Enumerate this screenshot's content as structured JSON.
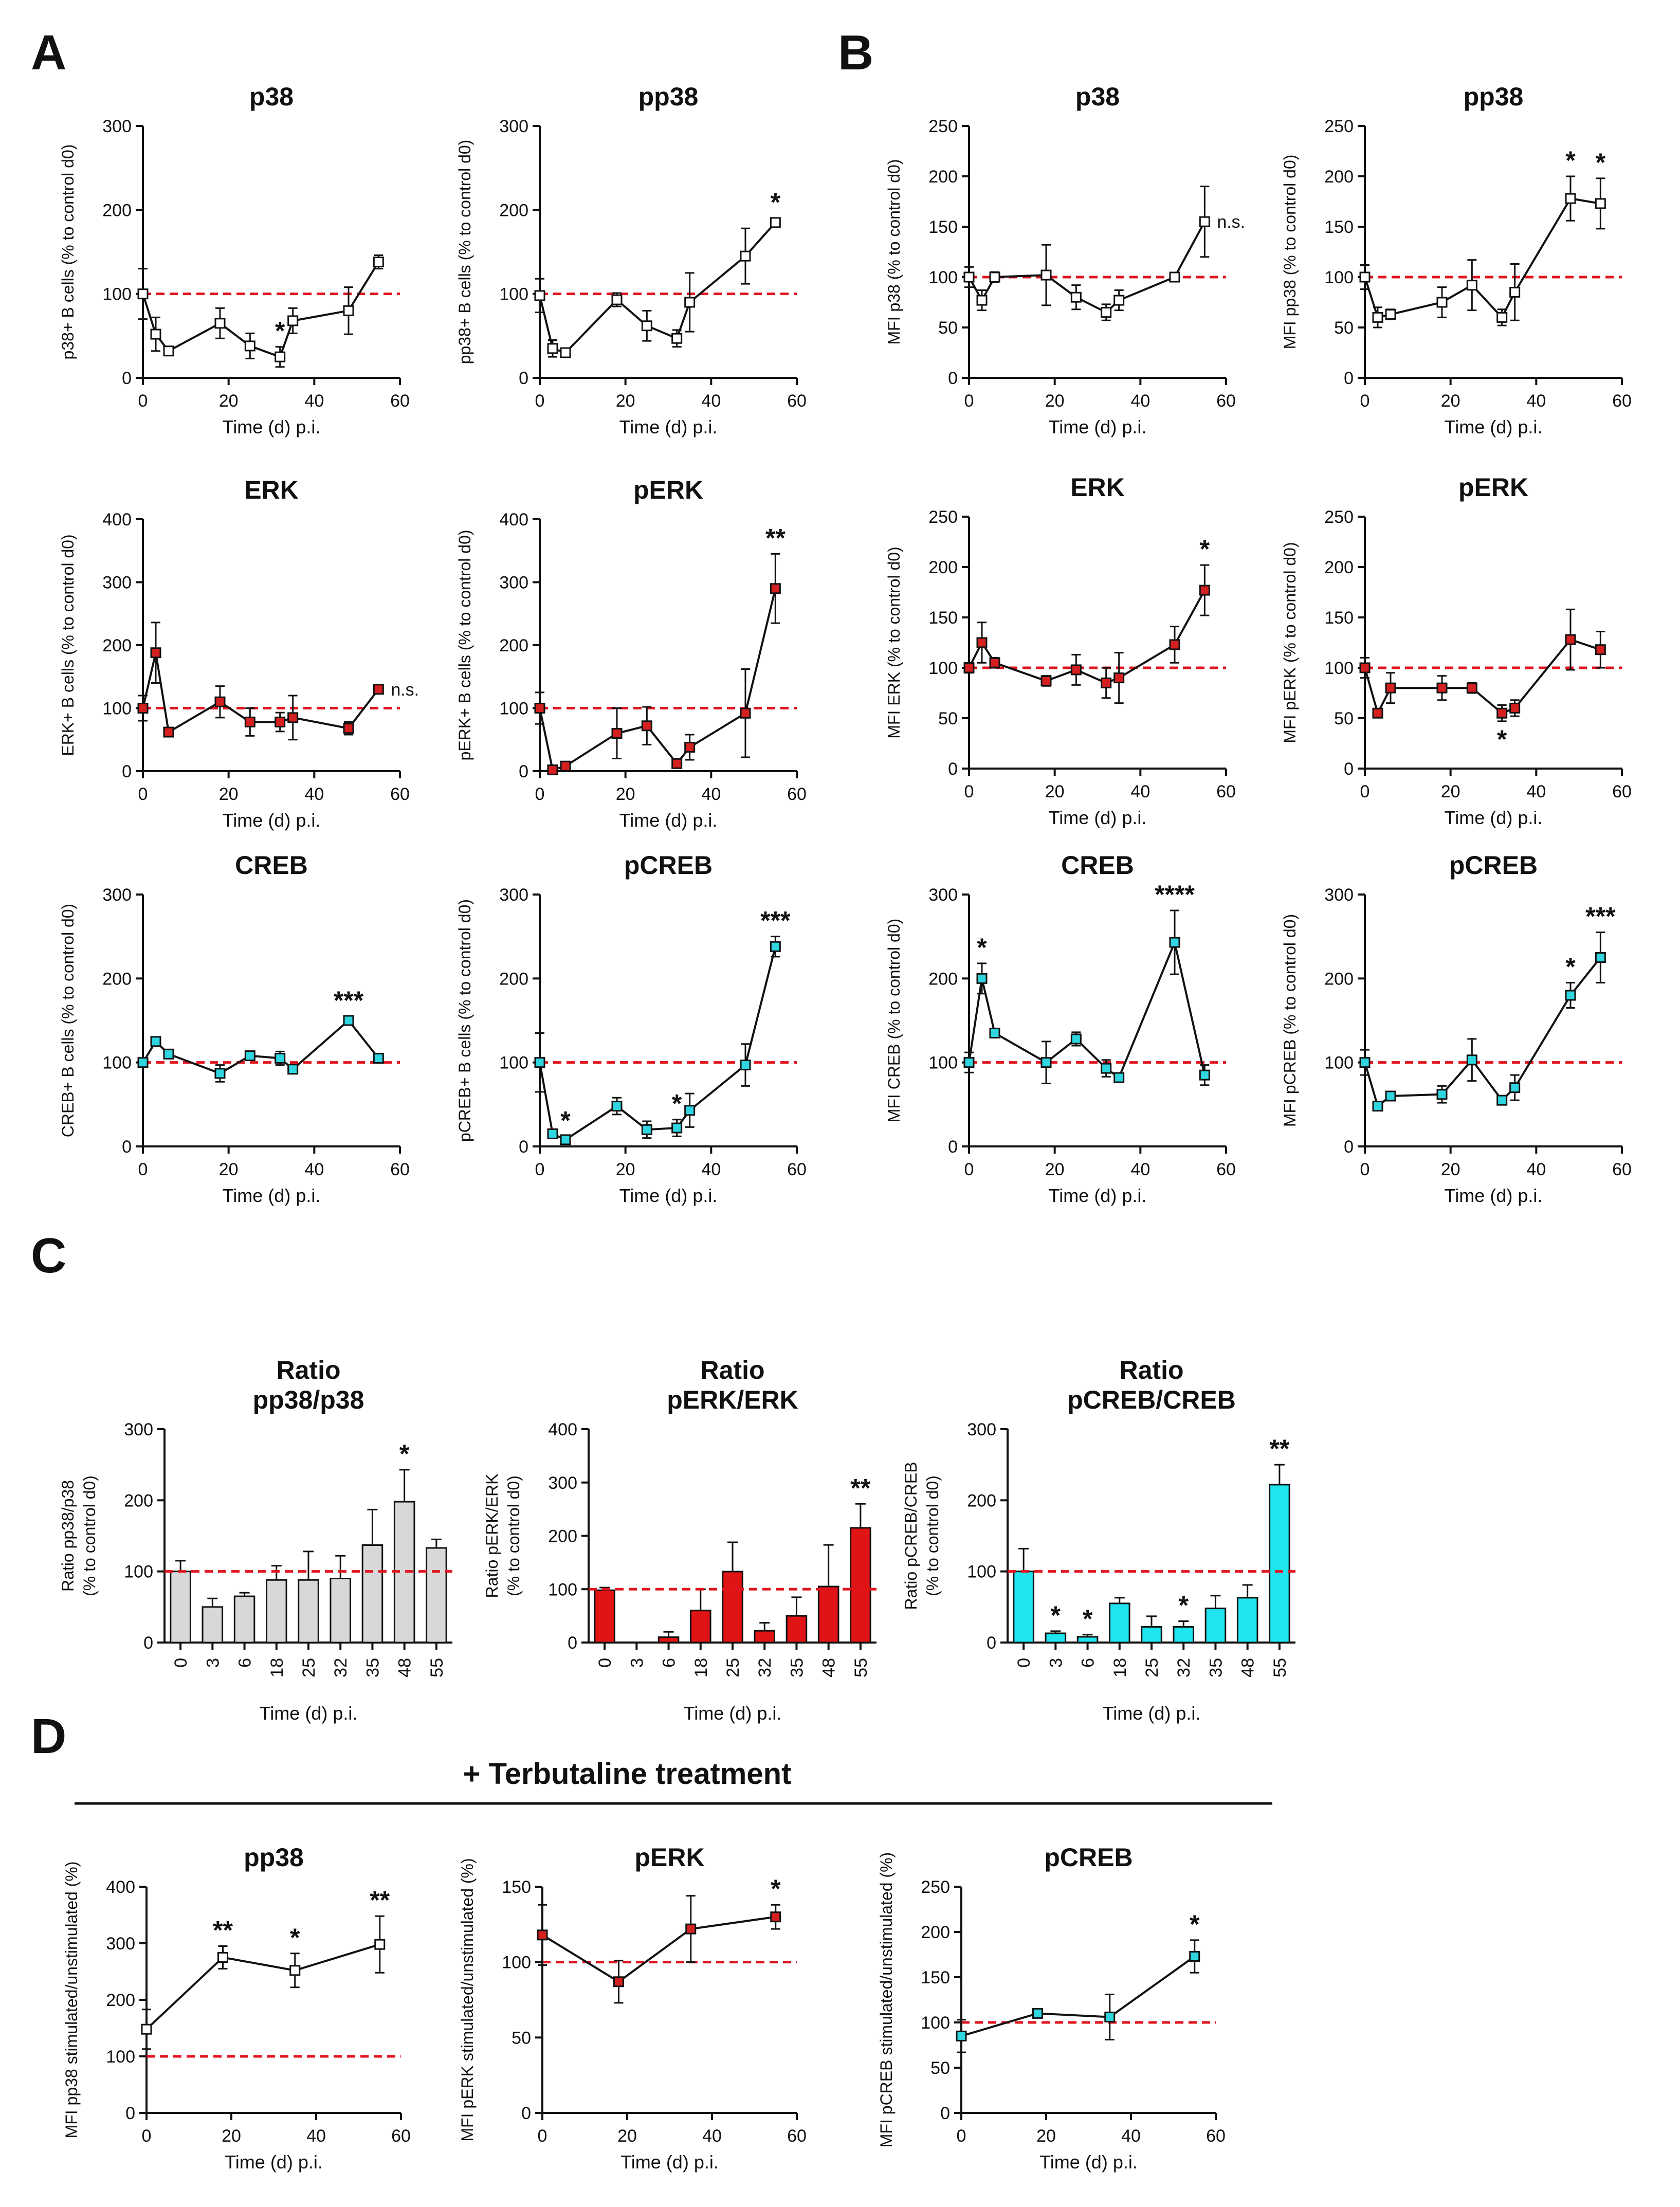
{
  "figure": {
    "panel_labels": [
      "A",
      "B",
      "C",
      "D"
    ],
    "treatment_title": "+ Terbutaline treatment"
  },
  "chart_data": [
    {
      "id": "A1",
      "type": "line",
      "title": [
        "p38"
      ],
      "ylabel": [
        "p38+ B cells (% to control d0)"
      ],
      "xlabel": "Time (d) p.i.",
      "xlim": [
        0,
        60
      ],
      "xticks": [
        0,
        20,
        40,
        60
      ],
      "ylim": [
        0,
        300
      ],
      "yticks": [
        0,
        100,
        200,
        300
      ],
      "reference": 100,
      "marker_color": "#ffffff",
      "x": [
        0,
        3,
        6,
        18,
        25,
        32,
        35,
        48,
        55
      ],
      "y": [
        100,
        52,
        32,
        65,
        38,
        25,
        68,
        80,
        138
      ],
      "err": [
        30,
        20,
        4,
        18,
        15,
        12,
        15,
        28,
        8
      ],
      "annotations": [
        {
          "x": 32,
          "text": "*"
        }
      ]
    },
    {
      "id": "A2",
      "type": "line",
      "title": [
        "pp38"
      ],
      "ylabel": [
        "pp38+ B cells (% to control d0)"
      ],
      "xlabel": "Time (d) p.i.",
      "xlim": [
        0,
        60
      ],
      "xticks": [
        0,
        20,
        40,
        60
      ],
      "ylim": [
        0,
        300
      ],
      "yticks": [
        0,
        100,
        200,
        300
      ],
      "reference": 100,
      "marker_color": "#ffffff",
      "x": [
        0,
        3,
        6,
        18,
        25,
        32,
        35,
        48,
        55
      ],
      "y": [
        98,
        35,
        30,
        93,
        62,
        47,
        90,
        145,
        185
      ],
      "err": [
        20,
        10,
        5,
        8,
        18,
        10,
        35,
        33,
        5
      ],
      "annotations": [
        {
          "x": 55,
          "text": "*"
        }
      ]
    },
    {
      "id": "A3",
      "type": "line",
      "title": [
        "ERK"
      ],
      "ylabel": [
        "ERK+ B cells (% to control d0)"
      ],
      "xlabel": "Time (d) p.i.",
      "xlim": [
        0,
        60
      ],
      "xticks": [
        0,
        20,
        40,
        60
      ],
      "ylim": [
        0,
        400
      ],
      "yticks": [
        0,
        100,
        200,
        300,
        400
      ],
      "reference": 100,
      "marker_color": "#d42020",
      "x": [
        0,
        3,
        6,
        18,
        25,
        32,
        35,
        48,
        55
      ],
      "y": [
        100,
        188,
        62,
        110,
        78,
        78,
        85,
        68,
        130
      ],
      "err": [
        20,
        48,
        5,
        25,
        22,
        15,
        35,
        10,
        5
      ],
      "annotations": [
        {
          "x": 55,
          "text": "n.s.",
          "kind": "ns"
        }
      ]
    },
    {
      "id": "A4",
      "type": "line",
      "title": [
        "pERK"
      ],
      "ylabel": [
        "pERK+ B cells (% to control d0)"
      ],
      "xlabel": "Time (d) p.i.",
      "xlim": [
        0,
        60
      ],
      "xticks": [
        0,
        20,
        40,
        60
      ],
      "ylim": [
        0,
        400
      ],
      "yticks": [
        0,
        100,
        200,
        300,
        400
      ],
      "reference": 100,
      "marker_color": "#d42020",
      "x": [
        0,
        3,
        6,
        18,
        25,
        32,
        35,
        48,
        55
      ],
      "y": [
        100,
        2,
        8,
        60,
        72,
        12,
        38,
        92,
        290
      ],
      "err": [
        25,
        3,
        3,
        40,
        30,
        5,
        20,
        70,
        55
      ],
      "annotations": [
        {
          "x": 55,
          "text": "**"
        }
      ]
    },
    {
      "id": "A5",
      "type": "line",
      "title": [
        "CREB"
      ],
      "ylabel": [
        "CREB+ B cells (% to control d0)"
      ],
      "xlabel": "Time (d) p.i.",
      "xlim": [
        0,
        60
      ],
      "xticks": [
        0,
        20,
        40,
        60
      ],
      "ylim": [
        0,
        300
      ],
      "yticks": [
        0,
        100,
        200,
        300
      ],
      "reference": 100,
      "marker_color": "#2fd6e0",
      "x": [
        0,
        3,
        6,
        18,
        25,
        32,
        35,
        48,
        55
      ],
      "y": [
        100,
        125,
        110,
        87,
        108,
        105,
        92,
        150,
        105
      ],
      "err": [
        5,
        5,
        5,
        10,
        5,
        8,
        5,
        5,
        5
      ],
      "annotations": [
        {
          "x": 48,
          "text": "***"
        }
      ]
    },
    {
      "id": "A6",
      "type": "line",
      "title": [
        "pCREB"
      ],
      "ylabel": [
        "pCREB+ B cells (% to control d0)"
      ],
      "xlabel": "Time (d) p.i.",
      "xlim": [
        0,
        60
      ],
      "xticks": [
        0,
        20,
        40,
        60
      ],
      "ylim": [
        0,
        300
      ],
      "yticks": [
        0,
        100,
        200,
        300
      ],
      "reference": 100,
      "marker_color": "#2fd6e0",
      "x": [
        0,
        3,
        6,
        18,
        25,
        32,
        35,
        48,
        55
      ],
      "y": [
        100,
        15,
        8,
        48,
        20,
        22,
        43,
        97,
        238
      ],
      "err": [
        35,
        5,
        4,
        10,
        10,
        10,
        20,
        25,
        12
      ],
      "annotations": [
        {
          "x": 6,
          "text": "*"
        },
        {
          "x": 32,
          "text": "*"
        },
        {
          "x": 55,
          "text": "***"
        }
      ]
    },
    {
      "id": "B1",
      "type": "line",
      "title": [
        "p38"
      ],
      "ylabel": [
        "MFI p38 (% to control d0)"
      ],
      "xlabel": "Time (d) p.i.",
      "xlim": [
        0,
        60
      ],
      "xticks": [
        0,
        20,
        40,
        60
      ],
      "ylim": [
        0,
        250
      ],
      "yticks": [
        0,
        50,
        100,
        150,
        200,
        250
      ],
      "reference": 100,
      "marker_color": "#ffffff",
      "x": [
        0,
        3,
        6,
        18,
        25,
        32,
        35,
        48,
        55
      ],
      "y": [
        100,
        77,
        100,
        102,
        80,
        65,
        77,
        100,
        155
      ],
      "err": [
        10,
        10,
        5,
        30,
        12,
        8,
        10,
        3,
        35
      ],
      "annotations": [
        {
          "x": 55,
          "text": "n.s.",
          "kind": "ns"
        }
      ]
    },
    {
      "id": "B2",
      "type": "line",
      "title": [
        "pp38"
      ],
      "ylabel": [
        "MFI pp38 (% to control d0)"
      ],
      "xlabel": "Time (d) p.i.",
      "xlim": [
        0,
        60
      ],
      "xticks": [
        0,
        20,
        40,
        60
      ],
      "ylim": [
        0,
        250
      ],
      "yticks": [
        0,
        50,
        100,
        150,
        200,
        250
      ],
      "reference": 100,
      "marker_color": "#ffffff",
      "x": [
        0,
        3,
        6,
        18,
        25,
        32,
        35,
        48,
        55
      ],
      "y": [
        100,
        60,
        63,
        75,
        92,
        60,
        85,
        178,
        173
      ],
      "err": [
        12,
        10,
        5,
        15,
        25,
        8,
        28,
        22,
        25
      ],
      "annotations": [
        {
          "x": 48,
          "text": "*"
        },
        {
          "x": 55,
          "text": "*"
        }
      ]
    },
    {
      "id": "B3",
      "type": "line",
      "title": [
        "ERK"
      ],
      "ylabel": [
        "MFI ERK (% to control d0)"
      ],
      "xlabel": "Time (d) p.i.",
      "xlim": [
        0,
        60
      ],
      "xticks": [
        0,
        20,
        40,
        60
      ],
      "ylim": [
        0,
        250
      ],
      "yticks": [
        0,
        50,
        100,
        150,
        200,
        250
      ],
      "reference": 100,
      "marker_color": "#d42020",
      "x": [
        0,
        3,
        6,
        18,
        25,
        32,
        35,
        48,
        55
      ],
      "y": [
        100,
        125,
        105,
        87,
        98,
        85,
        90,
        123,
        177
      ],
      "err": [
        5,
        20,
        5,
        5,
        15,
        15,
        25,
        18,
        25
      ],
      "annotations": [
        {
          "x": 55,
          "text": "*"
        }
      ]
    },
    {
      "id": "B4",
      "type": "line",
      "title": [
        "pERK"
      ],
      "ylabel": [
        "MFI pERK (% to control d0)"
      ],
      "xlabel": "Time (d) p.i.",
      "xlim": [
        0,
        60
      ],
      "xticks": [
        0,
        20,
        40,
        60
      ],
      "ylim": [
        0,
        250
      ],
      "yticks": [
        0,
        50,
        100,
        150,
        200,
        250
      ],
      "reference": 100,
      "marker_color": "#d42020",
      "x": [
        0,
        3,
        6,
        18,
        25,
        32,
        35,
        48,
        55
      ],
      "y": [
        100,
        55,
        80,
        80,
        80,
        55,
        60,
        128,
        118
      ],
      "err": [
        10,
        3,
        15,
        12,
        5,
        8,
        8,
        30,
        18
      ],
      "annotations": [
        {
          "x": 32,
          "text": "*",
          "below": true
        }
      ]
    },
    {
      "id": "B5",
      "type": "line",
      "title": [
        "CREB"
      ],
      "ylabel": [
        "MFI CREB (% to control d0)"
      ],
      "xlabel": "Time (d) p.i.",
      "xlim": [
        0,
        60
      ],
      "xticks": [
        0,
        20,
        40,
        60
      ],
      "ylim": [
        0,
        300
      ],
      "yticks": [
        0,
        100,
        200,
        300
      ],
      "reference": 100,
      "marker_color": "#2fd6e0",
      "x": [
        0,
        3,
        6,
        18,
        25,
        32,
        35,
        48,
        55
      ],
      "y": [
        100,
        200,
        135,
        100,
        128,
        93,
        82,
        243,
        85
      ],
      "err": [
        12,
        18,
        5,
        25,
        8,
        10,
        5,
        38,
        12
      ],
      "annotations": [
        {
          "x": 3,
          "text": "*"
        },
        {
          "x": 48,
          "text": "****"
        }
      ]
    },
    {
      "id": "B6",
      "type": "line",
      "title": [
        "pCREB"
      ],
      "ylabel": [
        "MFI pCREB (% to control d0)"
      ],
      "xlabel": "Time (d) p.i.",
      "xlim": [
        0,
        60
      ],
      "xticks": [
        0,
        20,
        40,
        60
      ],
      "ylim": [
        0,
        300
      ],
      "yticks": [
        0,
        100,
        200,
        300
      ],
      "reference": 100,
      "marker_color": "#2fd6e0",
      "x": [
        0,
        3,
        6,
        18,
        25,
        32,
        35,
        48,
        55
      ],
      "y": [
        100,
        48,
        60,
        62,
        103,
        55,
        70,
        180,
        225
      ],
      "err": [
        15,
        5,
        5,
        10,
        25,
        5,
        15,
        15,
        30
      ],
      "annotations": [
        {
          "x": 48,
          "text": "*"
        },
        {
          "x": 55,
          "text": "***"
        }
      ]
    },
    {
      "id": "C1",
      "type": "bar",
      "title": [
        "Ratio",
        "pp38/p38"
      ],
      "ylabel": [
        "Ratio pp38/p38",
        "(% to control d0)"
      ],
      "xlabel": "Time (d) p.i.",
      "categories": [
        "0",
        "3",
        "6",
        "18",
        "25",
        "32",
        "35",
        "48",
        "55"
      ],
      "ylim": [
        0,
        300
      ],
      "yticks": [
        0,
        100,
        200,
        300
      ],
      "reference": 100,
      "bar_color": "#d8d8d8",
      "values": [
        100,
        50,
        65,
        88,
        88,
        90,
        137,
        198,
        133
      ],
      "err": [
        15,
        12,
        5,
        20,
        40,
        32,
        50,
        45,
        12
      ],
      "annotations": [
        {
          "x": "48",
          "text": "*"
        }
      ]
    },
    {
      "id": "C2",
      "type": "bar",
      "title": [
        "Ratio",
        "pERK/ERK"
      ],
      "ylabel": [
        "Ratio pERK/ERK",
        "(% to control d0)"
      ],
      "xlabel": "Time (d) p.i.",
      "categories": [
        "0",
        "3",
        "6",
        "18",
        "25",
        "32",
        "35",
        "48",
        "55"
      ],
      "ylim": [
        0,
        400
      ],
      "yticks": [
        0,
        100,
        200,
        300,
        400
      ],
      "reference": 100,
      "bar_color": "#e01414",
      "values": [
        98,
        0,
        10,
        60,
        133,
        22,
        50,
        105,
        215
      ],
      "err": [
        5,
        0,
        10,
        40,
        55,
        15,
        35,
        78,
        45
      ],
      "annotations": [
        {
          "x": "55",
          "text": "**"
        }
      ]
    },
    {
      "id": "C3",
      "type": "bar",
      "title": [
        "Ratio",
        "pCREB/CREB"
      ],
      "ylabel": [
        "Ratio pCREB/CREB",
        "(% to control d0)"
      ],
      "xlabel": "Time (d) p.i.",
      "categories": [
        "0",
        "3",
        "6",
        "18",
        "25",
        "32",
        "35",
        "48",
        "55"
      ],
      "ylim": [
        0,
        300
      ],
      "yticks": [
        0,
        100,
        200,
        300
      ],
      "reference": 100,
      "bar_color": "#20e4ee",
      "values": [
        100,
        13,
        8,
        55,
        22,
        22,
        48,
        63,
        222
      ],
      "err": [
        32,
        3,
        3,
        8,
        15,
        8,
        18,
        18,
        28
      ],
      "annotations": [
        {
          "x": "3",
          "text": "*"
        },
        {
          "x": "6",
          "text": "*"
        },
        {
          "x": "32",
          "text": "*"
        },
        {
          "x": "55",
          "text": "**"
        }
      ]
    },
    {
      "id": "D1",
      "type": "line",
      "title": [
        "pp38"
      ],
      "ylabel": [
        "MFI pp38 stimulated/unstimulated (%)"
      ],
      "xlabel": "Time (d) p.i.",
      "xlim": [
        0,
        60
      ],
      "xticks": [
        0,
        20,
        40,
        60
      ],
      "ylim": [
        0,
        400
      ],
      "yticks": [
        0,
        100,
        200,
        300,
        400
      ],
      "reference": 100,
      "marker_color": "#ffffff",
      "x": [
        0,
        18,
        35,
        55
      ],
      "y": [
        148,
        275,
        252,
        298
      ],
      "err": [
        35,
        20,
        30,
        50
      ],
      "annotations": [
        {
          "x": 18,
          "text": "**"
        },
        {
          "x": 35,
          "text": "*"
        },
        {
          "x": 55,
          "text": "**"
        }
      ]
    },
    {
      "id": "D2",
      "type": "line",
      "title": [
        "pERK"
      ],
      "ylabel": [
        "MFI pERK stimulated/unstimulated (%)"
      ],
      "xlabel": "Time (d) p.i.",
      "xlim": [
        0,
        60
      ],
      "xticks": [
        0,
        20,
        40,
        60
      ],
      "ylim": [
        0,
        150
      ],
      "yticks": [
        0,
        50,
        100,
        150
      ],
      "reference": 100,
      "marker_color": "#d42020",
      "x": [
        0,
        18,
        35,
        55
      ],
      "y": [
        118,
        87,
        122,
        130
      ],
      "err": [
        20,
        14,
        22,
        8
      ],
      "annotations": [
        {
          "x": 55,
          "text": "*"
        }
      ]
    },
    {
      "id": "D3",
      "type": "line",
      "title": [
        "pCREB"
      ],
      "ylabel": [
        "MFI pCREB stimulated/unstimulated (%)"
      ],
      "xlabel": "Time (d) p.i.",
      "xlim": [
        0,
        60
      ],
      "xticks": [
        0,
        20,
        40,
        60
      ],
      "ylim": [
        0,
        250
      ],
      "yticks": [
        0,
        50,
        100,
        150,
        200,
        250
      ],
      "reference": 100,
      "marker_color": "#2fd6e0",
      "x": [
        0,
        18,
        35,
        55
      ],
      "y": [
        85,
        110,
        106,
        173
      ],
      "err": [
        18,
        3,
        25,
        18
      ],
      "annotations": [
        {
          "x": 55,
          "text": "*"
        }
      ]
    }
  ]
}
